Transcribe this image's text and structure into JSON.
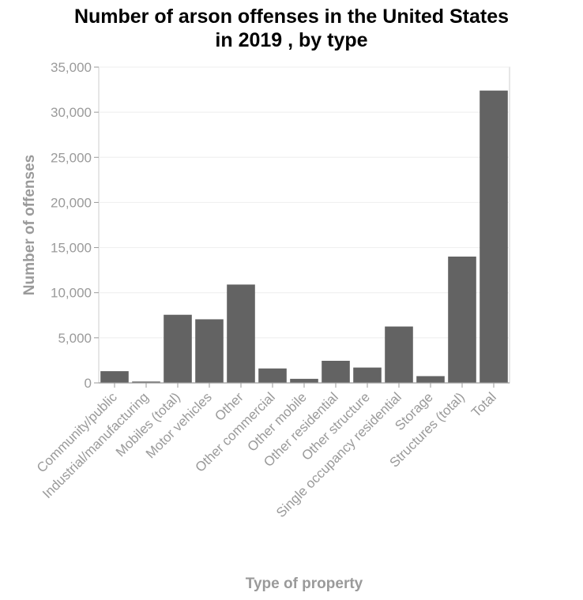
{
  "chart_data": {
    "type": "bar",
    "title_lines": [
      "Number of arson offenses in the United States",
      "in 2019 , by type"
    ],
    "xlabel": "Type of property",
    "ylabel": "Number of offenses",
    "categories": [
      "Community/public",
      "Industrial/manufacturing",
      "Mobiles (total)",
      "Motor vehicles",
      "Other",
      "Other commercial",
      "Other mobile",
      "Other residential",
      "Other structure",
      "Single occupancy residential",
      "Storage",
      "Structures (total)",
      "Total"
    ],
    "values": [
      1300,
      150,
      7550,
      7050,
      10900,
      1600,
      450,
      2450,
      1700,
      6250,
      750,
      14000,
      32400
    ],
    "ylim": [
      0,
      35000
    ],
    "yticks": [
      0,
      5000,
      10000,
      15000,
      20000,
      25000,
      30000,
      35000
    ],
    "ytick_labels": [
      "0",
      "5,000",
      "10,000",
      "15,000",
      "20,000",
      "25,000",
      "30,000",
      "35,000"
    ],
    "grid": true,
    "colors": {
      "bar": "#636363",
      "grid": "#eeeeee",
      "axis": "#9a9a9a",
      "text": "#9a9a9a",
      "title": "#000000"
    }
  }
}
